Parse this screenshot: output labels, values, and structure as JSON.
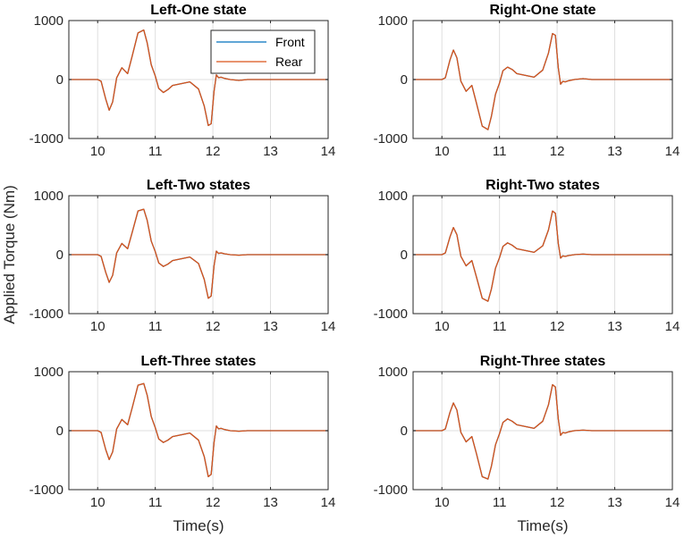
{
  "figure": {
    "ylabel": "Applied Torque (Nm)",
    "xlabel": "Time(s)"
  },
  "chart_data": [
    {
      "type": "line",
      "title": "Left-One state",
      "xlabel": "",
      "ylabel": "",
      "xlim": [
        9.5,
        14
      ],
      "ylim": [
        -1000,
        1000
      ],
      "xticks": [
        10,
        11,
        12,
        13,
        14
      ],
      "yticks": [
        -1000,
        0,
        1000
      ],
      "grid": true,
      "legend": {
        "placement": "top-right",
        "entries": [
          "Front",
          "Rear"
        ]
      },
      "series": [
        {
          "name": "Front",
          "color": "#0072BD",
          "x": [
            9.5,
            10.0,
            10.06,
            10.14,
            10.2,
            10.26,
            10.33,
            10.42,
            10.52,
            10.6,
            10.7,
            10.8,
            10.86,
            10.93,
            11.0,
            11.06,
            11.14,
            11.22,
            11.3,
            11.45,
            11.6,
            11.75,
            11.85,
            11.92,
            11.97,
            12.02,
            12.06,
            12.1,
            12.14,
            12.2,
            12.3,
            12.45,
            12.6,
            12.9,
            14.0
          ],
          "y": [
            0,
            0,
            -30,
            -330,
            -520,
            -380,
            30,
            200,
            100,
            400,
            790,
            840,
            620,
            250,
            60,
            -150,
            -220,
            -170,
            -100,
            -70,
            -40,
            -160,
            -450,
            -780,
            -750,
            -200,
            80,
            30,
            40,
            20,
            0,
            -15,
            0,
            0,
            0
          ]
        },
        {
          "name": "Rear",
          "color": "#D95319",
          "x": [
            9.5,
            10.0,
            10.06,
            10.14,
            10.2,
            10.26,
            10.33,
            10.42,
            10.52,
            10.6,
            10.7,
            10.8,
            10.86,
            10.93,
            11.0,
            11.06,
            11.14,
            11.22,
            11.3,
            11.45,
            11.6,
            11.75,
            11.85,
            11.92,
            11.97,
            12.02,
            12.06,
            12.1,
            12.14,
            12.2,
            12.3,
            12.45,
            12.6,
            12.9,
            14.0
          ],
          "y": [
            0,
            0,
            -30,
            -330,
            -520,
            -380,
            30,
            200,
            100,
            400,
            790,
            840,
            620,
            250,
            60,
            -150,
            -220,
            -170,
            -100,
            -70,
            -40,
            -160,
            -450,
            -780,
            -750,
            -200,
            80,
            30,
            40,
            20,
            0,
            -15,
            0,
            0,
            0
          ]
        }
      ]
    },
    {
      "type": "line",
      "title": "Right-One state",
      "xlabel": "",
      "ylabel": "",
      "xlim": [
        9.5,
        14
      ],
      "ylim": [
        -1000,
        1000
      ],
      "xticks": [
        10,
        11,
        12,
        13,
        14
      ],
      "yticks": [
        -1000,
        0,
        1000
      ],
      "grid": true,
      "series": [
        {
          "name": "Front",
          "color": "#0072BD",
          "x": [
            9.5,
            10.0,
            10.06,
            10.14,
            10.2,
            10.26,
            10.33,
            10.42,
            10.52,
            10.6,
            10.7,
            10.8,
            10.86,
            10.93,
            11.0,
            11.06,
            11.14,
            11.22,
            11.3,
            11.45,
            11.6,
            11.75,
            11.85,
            11.92,
            11.97,
            12.02,
            12.06,
            12.1,
            12.14,
            12.2,
            12.3,
            12.45,
            12.6,
            12.9,
            14.0
          ],
          "y": [
            0,
            0,
            30,
            330,
            500,
            370,
            -30,
            -200,
            -100,
            -400,
            -790,
            -850,
            -620,
            -250,
            -60,
            150,
            210,
            170,
            100,
            70,
            40,
            160,
            450,
            780,
            750,
            200,
            -80,
            -30,
            -40,
            -20,
            0,
            15,
            0,
            0,
            0
          ]
        },
        {
          "name": "Rear",
          "color": "#D95319",
          "x": [
            9.5,
            10.0,
            10.06,
            10.14,
            10.2,
            10.26,
            10.33,
            10.42,
            10.52,
            10.6,
            10.7,
            10.8,
            10.86,
            10.93,
            11.0,
            11.06,
            11.14,
            11.22,
            11.3,
            11.45,
            11.6,
            11.75,
            11.85,
            11.92,
            11.97,
            12.02,
            12.06,
            12.1,
            12.14,
            12.2,
            12.3,
            12.45,
            12.6,
            12.9,
            14.0
          ],
          "y": [
            0,
            0,
            30,
            330,
            500,
            370,
            -30,
            -200,
            -100,
            -400,
            -790,
            -850,
            -620,
            -250,
            -60,
            150,
            210,
            170,
            100,
            70,
            40,
            160,
            450,
            780,
            750,
            200,
            -80,
            -30,
            -40,
            -20,
            0,
            15,
            0,
            0,
            0
          ]
        }
      ]
    },
    {
      "type": "line",
      "title": "Left-Two states",
      "xlabel": "",
      "ylabel": "",
      "xlim": [
        9.5,
        14
      ],
      "ylim": [
        -1000,
        1000
      ],
      "xticks": [
        10,
        11,
        12,
        13,
        14
      ],
      "yticks": [
        -1000,
        0,
        1000
      ],
      "grid": true,
      "series": [
        {
          "name": "Front",
          "color": "#0072BD",
          "x": [
            9.5,
            10.0,
            10.06,
            10.14,
            10.2,
            10.26,
            10.33,
            10.42,
            10.52,
            10.6,
            10.7,
            10.8,
            10.86,
            10.93,
            11.0,
            11.06,
            11.14,
            11.22,
            11.3,
            11.45,
            11.6,
            11.75,
            11.85,
            11.92,
            11.97,
            12.02,
            12.06,
            12.1,
            12.14,
            12.2,
            12.3,
            12.45,
            12.6,
            12.9,
            14.0
          ],
          "y": [
            0,
            0,
            -30,
            -300,
            -470,
            -350,
            30,
            190,
            100,
            380,
            740,
            770,
            580,
            230,
            50,
            -140,
            -200,
            -160,
            -100,
            -70,
            -40,
            -150,
            -420,
            -740,
            -700,
            -190,
            60,
            20,
            30,
            15,
            0,
            -10,
            0,
            0,
            0
          ]
        },
        {
          "name": "Rear",
          "color": "#D95319",
          "x": [
            9.5,
            10.0,
            10.06,
            10.14,
            10.2,
            10.26,
            10.33,
            10.42,
            10.52,
            10.6,
            10.7,
            10.8,
            10.86,
            10.93,
            11.0,
            11.06,
            11.14,
            11.22,
            11.3,
            11.45,
            11.6,
            11.75,
            11.85,
            11.92,
            11.97,
            12.02,
            12.06,
            12.1,
            12.14,
            12.2,
            12.3,
            12.45,
            12.6,
            12.9,
            14.0
          ],
          "y": [
            0,
            0,
            -30,
            -300,
            -470,
            -350,
            30,
            190,
            100,
            380,
            740,
            770,
            580,
            230,
            50,
            -140,
            -200,
            -160,
            -100,
            -70,
            -40,
            -150,
            -420,
            -740,
            -700,
            -190,
            60,
            20,
            30,
            15,
            0,
            -10,
            0,
            0,
            0
          ]
        }
      ]
    },
    {
      "type": "line",
      "title": "Right-Two states",
      "xlabel": "",
      "ylabel": "",
      "xlim": [
        9.5,
        14
      ],
      "ylim": [
        -1000,
        1000
      ],
      "xticks": [
        10,
        11,
        12,
        13,
        14
      ],
      "yticks": [
        -1000,
        0,
        1000
      ],
      "grid": true,
      "series": [
        {
          "name": "Front",
          "color": "#0072BD",
          "x": [
            9.5,
            10.0,
            10.06,
            10.14,
            10.2,
            10.26,
            10.33,
            10.42,
            10.52,
            10.6,
            10.7,
            10.8,
            10.86,
            10.93,
            11.0,
            11.06,
            11.14,
            11.22,
            11.3,
            11.45,
            11.6,
            11.75,
            11.85,
            11.92,
            11.97,
            12.02,
            12.06,
            12.1,
            12.14,
            12.2,
            12.3,
            12.45,
            12.6,
            12.9,
            14.0
          ],
          "y": [
            0,
            0,
            30,
            300,
            460,
            340,
            -30,
            -190,
            -100,
            -380,
            -740,
            -790,
            -580,
            -230,
            -50,
            140,
            200,
            160,
            100,
            70,
            40,
            150,
            420,
            740,
            700,
            190,
            -60,
            -20,
            -30,
            -15,
            0,
            10,
            0,
            0,
            0
          ]
        },
        {
          "name": "Rear",
          "color": "#D95319",
          "x": [
            9.5,
            10.0,
            10.06,
            10.14,
            10.2,
            10.26,
            10.33,
            10.42,
            10.52,
            10.6,
            10.7,
            10.8,
            10.86,
            10.93,
            11.0,
            11.06,
            11.14,
            11.22,
            11.3,
            11.45,
            11.6,
            11.75,
            11.85,
            11.92,
            11.97,
            12.02,
            12.06,
            12.1,
            12.14,
            12.2,
            12.3,
            12.45,
            12.6,
            12.9,
            14.0
          ],
          "y": [
            0,
            0,
            30,
            300,
            460,
            340,
            -30,
            -190,
            -100,
            -380,
            -740,
            -790,
            -580,
            -230,
            -50,
            140,
            200,
            160,
            100,
            70,
            40,
            150,
            420,
            740,
            700,
            190,
            -60,
            -20,
            -30,
            -15,
            0,
            10,
            0,
            0,
            0
          ]
        }
      ]
    },
    {
      "type": "line",
      "title": "Left-Three states",
      "xlabel": "Time(s)",
      "ylabel": "",
      "xlim": [
        9.5,
        14
      ],
      "ylim": [
        -1000,
        1000
      ],
      "xticks": [
        10,
        11,
        12,
        13,
        14
      ],
      "yticks": [
        -1000,
        0,
        1000
      ],
      "grid": true,
      "series": [
        {
          "name": "Front",
          "color": "#0072BD",
          "x": [
            9.5,
            10.0,
            10.06,
            10.14,
            10.2,
            10.26,
            10.33,
            10.42,
            10.52,
            10.6,
            10.7,
            10.8,
            10.86,
            10.93,
            11.0,
            11.06,
            11.14,
            11.22,
            11.3,
            11.45,
            11.6,
            11.75,
            11.85,
            11.92,
            11.97,
            12.02,
            12.06,
            12.1,
            12.14,
            12.2,
            12.3,
            12.45,
            12.6,
            12.9,
            14.0
          ],
          "y": [
            0,
            0,
            -30,
            -320,
            -490,
            -360,
            30,
            190,
            100,
            390,
            770,
            800,
            600,
            240,
            50,
            -140,
            -200,
            -160,
            -100,
            -70,
            -40,
            -160,
            -440,
            -780,
            -740,
            -200,
            80,
            30,
            40,
            20,
            0,
            -10,
            0,
            0,
            0
          ]
        },
        {
          "name": "Rear",
          "color": "#D95319",
          "x": [
            9.5,
            10.0,
            10.06,
            10.14,
            10.2,
            10.26,
            10.33,
            10.42,
            10.52,
            10.6,
            10.7,
            10.8,
            10.86,
            10.93,
            11.0,
            11.06,
            11.14,
            11.22,
            11.3,
            11.45,
            11.6,
            11.75,
            11.85,
            11.92,
            11.97,
            12.02,
            12.06,
            12.1,
            12.14,
            12.2,
            12.3,
            12.45,
            12.6,
            12.9,
            14.0
          ],
          "y": [
            0,
            0,
            -30,
            -320,
            -490,
            -360,
            30,
            190,
            100,
            390,
            770,
            800,
            600,
            240,
            50,
            -140,
            -200,
            -160,
            -100,
            -70,
            -40,
            -160,
            -440,
            -780,
            -740,
            -200,
            80,
            30,
            40,
            20,
            0,
            -10,
            0,
            0,
            0
          ]
        }
      ]
    },
    {
      "type": "line",
      "title": "Right-Three states",
      "xlabel": "Time(s)",
      "ylabel": "",
      "xlim": [
        9.5,
        14
      ],
      "ylim": [
        -1000,
        1000
      ],
      "xticks": [
        10,
        11,
        12,
        13,
        14
      ],
      "yticks": [
        -1000,
        0,
        1000
      ],
      "grid": true,
      "series": [
        {
          "name": "Front",
          "color": "#0072BD",
          "x": [
            9.5,
            10.0,
            10.06,
            10.14,
            10.2,
            10.26,
            10.33,
            10.42,
            10.52,
            10.6,
            10.7,
            10.8,
            10.86,
            10.93,
            11.0,
            11.06,
            11.14,
            11.22,
            11.3,
            11.45,
            11.6,
            11.75,
            11.85,
            11.92,
            11.97,
            12.02,
            12.06,
            12.1,
            12.14,
            12.2,
            12.3,
            12.45,
            12.6,
            12.9,
            14.0
          ],
          "y": [
            0,
            0,
            30,
            310,
            470,
            350,
            -30,
            -190,
            -100,
            -390,
            -780,
            -820,
            -600,
            -240,
            -50,
            140,
            200,
            160,
            100,
            70,
            40,
            160,
            440,
            780,
            740,
            200,
            -80,
            -30,
            -40,
            -20,
            0,
            10,
            0,
            0,
            0
          ]
        },
        {
          "name": "Rear",
          "color": "#D95319",
          "x": [
            9.5,
            10.0,
            10.06,
            10.14,
            10.2,
            10.26,
            10.33,
            10.42,
            10.52,
            10.6,
            10.7,
            10.8,
            10.86,
            10.93,
            11.0,
            11.06,
            11.14,
            11.22,
            11.3,
            11.45,
            11.6,
            11.75,
            11.85,
            11.92,
            11.97,
            12.02,
            12.06,
            12.1,
            12.14,
            12.2,
            12.3,
            12.45,
            12.6,
            12.9,
            14.0
          ],
          "y": [
            0,
            0,
            30,
            310,
            470,
            350,
            -30,
            -190,
            -100,
            -390,
            -780,
            -820,
            -600,
            -240,
            -50,
            140,
            200,
            160,
            100,
            70,
            40,
            160,
            440,
            780,
            740,
            200,
            -80,
            -30,
            -40,
            -20,
            0,
            10,
            0,
            0,
            0
          ]
        }
      ]
    }
  ]
}
